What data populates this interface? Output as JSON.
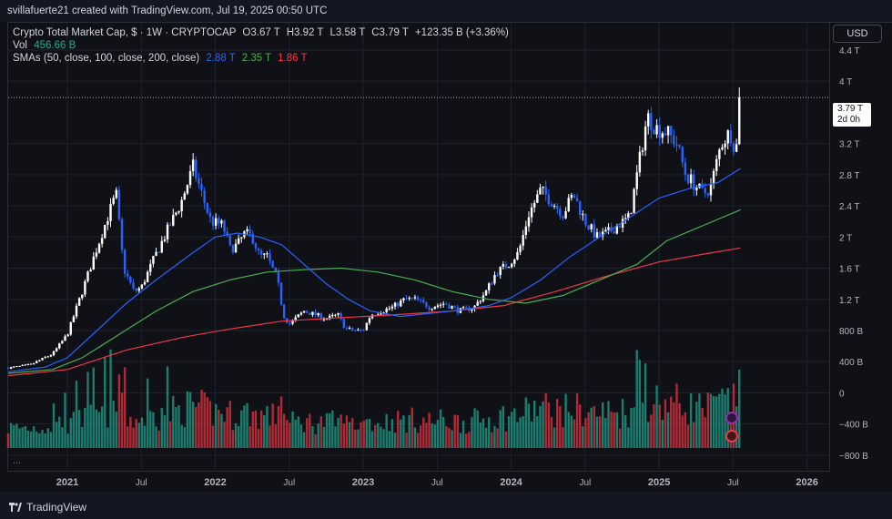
{
  "header": {
    "attribution": "svillafuerte21 created with TradingView.com, Jul 19, 2025 00:50 UTC"
  },
  "legend": {
    "title": "Crypto Total Market Cap, $ · 1W · CRYPTOCAP",
    "open": "O3.67 T",
    "high": "H3.92 T",
    "low": "L3.58 T",
    "close": "C3.79 T",
    "change": "+123.35 B (+3.36%)",
    "vol_label": "Vol",
    "vol_value": "456.66 B",
    "sma_label": "SMAs (50, close, 100, close, 200, close)",
    "sma50_value": "2.88 T",
    "sma100_value": "2.35 T",
    "sma200_value": "1.86 T"
  },
  "currency_button": "USD",
  "price_label": {
    "value": "3.79 T",
    "countdown": "2d 0h"
  },
  "footer": {
    "brand": "TradingView",
    "more": "..."
  },
  "colors": {
    "up": "#ffffff",
    "down": "#2962ff",
    "vol_up": "#22ab94",
    "vol_down": "#f23645",
    "sma50": "#2962ff",
    "sma100": "#4caf50",
    "sma200": "#f23645"
  },
  "chart_data": {
    "type": "candlestick",
    "symbol": "CRYPTOCAP:TOTAL",
    "interval": "1W",
    "y_ticks": [
      "4.4 T",
      "4 T",
      "3.2 T",
      "2.8 T",
      "2.4 T",
      "2 T",
      "1.6 T",
      "1.2 T",
      "800 B",
      "400 B",
      "0",
      "−400 B",
      "−800 B"
    ],
    "y_tick_values": [
      4.4,
      4.0,
      3.2,
      2.8,
      2.4,
      2.0,
      1.6,
      1.2,
      0.8,
      0.4,
      0,
      -0.4,
      -0.8
    ],
    "x_ticks": [
      "2021",
      "Jul",
      "2022",
      "Jul",
      "2023",
      "Jul",
      "2024",
      "Jul",
      "2025",
      "Jul",
      "2026"
    ],
    "x_tick_years": [
      2021.0,
      2021.5,
      2022.0,
      2022.5,
      2023.0,
      2023.5,
      2024.0,
      2024.5,
      2025.0,
      2025.5,
      2026.0
    ],
    "x_range": [
      2020.6,
      2026.15
    ],
    "y_range": [
      -1.0,
      4.75
    ],
    "close_path": [
      [
        2020.6,
        0.32
      ],
      [
        2020.75,
        0.36
      ],
      [
        2020.9,
        0.5
      ],
      [
        2021.0,
        0.75
      ],
      [
        2021.1,
        1.3
      ],
      [
        2021.18,
        1.75
      ],
      [
        2021.28,
        2.3
      ],
      [
        2021.33,
        2.55
      ],
      [
        2021.38,
        1.6
      ],
      [
        2021.45,
        1.3
      ],
      [
        2021.5,
        1.35
      ],
      [
        2021.58,
        1.7
      ],
      [
        2021.68,
        2.1
      ],
      [
        2021.77,
        2.45
      ],
      [
        2021.85,
        2.9
      ],
      [
        2021.9,
        2.6
      ],
      [
        2021.97,
        2.2
      ],
      [
        2022.05,
        2.15
      ],
      [
        2022.1,
        1.85
      ],
      [
        2022.15,
        1.9
      ],
      [
        2022.2,
        2.05
      ],
      [
        2022.25,
        2.0
      ],
      [
        2022.3,
        1.75
      ],
      [
        2022.35,
        1.75
      ],
      [
        2022.42,
        1.45
      ],
      [
        2022.46,
        1.0
      ],
      [
        2022.5,
        0.88
      ],
      [
        2022.6,
        1.05
      ],
      [
        2022.68,
        1.0
      ],
      [
        2022.75,
        0.95
      ],
      [
        2022.83,
        1.0
      ],
      [
        2022.88,
        0.82
      ],
      [
        2022.95,
        0.8
      ],
      [
        2023.0,
        0.8
      ],
      [
        2023.05,
        1.0
      ],
      [
        2023.12,
        1.05
      ],
      [
        2023.2,
        1.1
      ],
      [
        2023.28,
        1.2
      ],
      [
        2023.35,
        1.2
      ],
      [
        2023.45,
        1.1
      ],
      [
        2023.55,
        1.15
      ],
      [
        2023.65,
        1.05
      ],
      [
        2023.75,
        1.1
      ],
      [
        2023.83,
        1.3
      ],
      [
        2023.9,
        1.55
      ],
      [
        2023.98,
        1.65
      ],
      [
        2024.05,
        1.8
      ],
      [
        2024.12,
        2.3
      ],
      [
        2024.2,
        2.6
      ],
      [
        2024.28,
        2.45
      ],
      [
        2024.35,
        2.3
      ],
      [
        2024.42,
        2.55
      ],
      [
        2024.5,
        2.2
      ],
      [
        2024.58,
        2.0
      ],
      [
        2024.65,
        2.05
      ],
      [
        2024.72,
        2.15
      ],
      [
        2024.8,
        2.25
      ],
      [
        2024.86,
        2.9
      ],
      [
        2024.92,
        3.55
      ],
      [
        2024.98,
        3.4
      ],
      [
        2025.05,
        3.35
      ],
      [
        2025.12,
        3.2
      ],
      [
        2025.18,
        2.8
      ],
      [
        2025.25,
        2.65
      ],
      [
        2025.3,
        2.55
      ],
      [
        2025.35,
        2.65
      ],
      [
        2025.42,
        3.2
      ],
      [
        2025.48,
        3.35
      ],
      [
        2025.52,
        3.1
      ],
      [
        2025.55,
        3.79
      ]
    ],
    "sma50": [
      [
        2020.6,
        0.27
      ],
      [
        2020.85,
        0.33
      ],
      [
        2021.0,
        0.45
      ],
      [
        2021.2,
        0.8
      ],
      [
        2021.4,
        1.15
      ],
      [
        2021.6,
        1.45
      ],
      [
        2021.85,
        1.8
      ],
      [
        2022.0,
        2.0
      ],
      [
        2022.15,
        2.05
      ],
      [
        2022.3,
        2.0
      ],
      [
        2022.45,
        1.9
      ],
      [
        2022.6,
        1.65
      ],
      [
        2022.75,
        1.4
      ],
      [
        2022.9,
        1.2
      ],
      [
        2023.05,
        1.05
      ],
      [
        2023.25,
        0.98
      ],
      [
        2023.45,
        1.02
      ],
      [
        2023.65,
        1.06
      ],
      [
        2023.85,
        1.12
      ],
      [
        2024.0,
        1.22
      ],
      [
        2024.2,
        1.45
      ],
      [
        2024.4,
        1.75
      ],
      [
        2024.6,
        2.0
      ],
      [
        2024.8,
        2.25
      ],
      [
        2025.0,
        2.5
      ],
      [
        2025.2,
        2.62
      ],
      [
        2025.4,
        2.7
      ],
      [
        2025.55,
        2.88
      ]
    ],
    "sma100": [
      [
        2020.6,
        0.25
      ],
      [
        2020.9,
        0.3
      ],
      [
        2021.1,
        0.45
      ],
      [
        2021.35,
        0.75
      ],
      [
        2021.6,
        1.05
      ],
      [
        2021.85,
        1.3
      ],
      [
        2022.1,
        1.45
      ],
      [
        2022.35,
        1.55
      ],
      [
        2022.6,
        1.58
      ],
      [
        2022.85,
        1.6
      ],
      [
        2023.1,
        1.55
      ],
      [
        2023.35,
        1.45
      ],
      [
        2023.6,
        1.3
      ],
      [
        2023.85,
        1.2
      ],
      [
        2024.1,
        1.15
      ],
      [
        2024.35,
        1.25
      ],
      [
        2024.6,
        1.45
      ],
      [
        2024.85,
        1.65
      ],
      [
        2025.05,
        1.95
      ],
      [
        2025.3,
        2.15
      ],
      [
        2025.55,
        2.35
      ]
    ],
    "sma200": [
      [
        2020.6,
        0.22
      ],
      [
        2021.0,
        0.3
      ],
      [
        2021.4,
        0.55
      ],
      [
        2021.8,
        0.72
      ],
      [
        2022.1,
        0.82
      ],
      [
        2022.45,
        0.92
      ],
      [
        2022.8,
        0.96
      ],
      [
        2023.2,
        1.0
      ],
      [
        2023.6,
        1.05
      ],
      [
        2023.95,
        1.12
      ],
      [
        2024.3,
        1.3
      ],
      [
        2024.65,
        1.5
      ],
      [
        2025.0,
        1.68
      ],
      [
        2025.3,
        1.78
      ],
      [
        2025.55,
        1.86
      ]
    ],
    "last_close": 3.79,
    "last_high": 3.92
  }
}
